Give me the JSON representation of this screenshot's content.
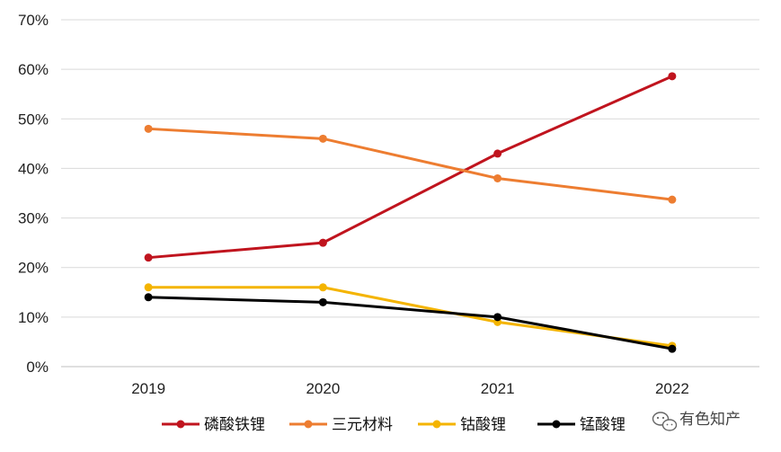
{
  "chart_data": {
    "type": "line",
    "categories": [
      "2019",
      "2020",
      "2021",
      "2022"
    ],
    "yticks": [
      "0%",
      "10%",
      "20%",
      "30%",
      "40%",
      "50%",
      "60%",
      "70%"
    ],
    "ylim": [
      0,
      70
    ],
    "grid": true,
    "legend_position": "bottom",
    "series": [
      {
        "name": "磷酸铁锂",
        "color": "#C0141E",
        "values": [
          22,
          25,
          43,
          58.6
        ]
      },
      {
        "name": "三元材料",
        "color": "#ED7D31",
        "values": [
          48,
          46,
          38,
          33.7
        ]
      },
      {
        "name": "钴酸锂",
        "color": "#F4B400",
        "values": [
          16,
          16,
          9,
          4.2
        ]
      },
      {
        "name": "锰酸锂",
        "color": "#000000",
        "values": [
          14,
          13,
          10,
          3.6
        ]
      }
    ]
  },
  "watermark": {
    "icon": "wechat-icon",
    "text": "有色知产"
  }
}
